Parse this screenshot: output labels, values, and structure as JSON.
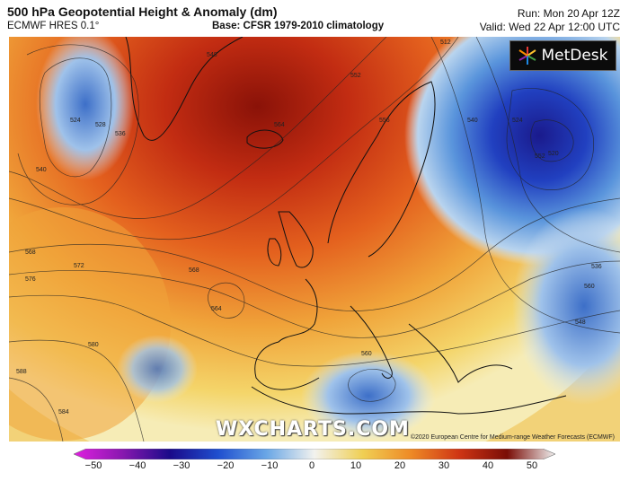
{
  "header": {
    "title": "500 hPa Geopotential Height & Anomaly (dm)",
    "model": "ECMWF HRES 0.1°",
    "base": "Base: CFSR 1979-2010 climatology",
    "run": "Run: Mon 20 Apr 12Z",
    "valid": "Valid: Wed 22 Apr 12:00 UTC"
  },
  "logo": {
    "text": "MetDesk",
    "icon": "metdesk-star-icon"
  },
  "watermark": "WXCHARTS.COM",
  "copyright": "©2020 European Centre for Medium-range Weather Forecasts (ECMWF)",
  "colorbar": {
    "ticks": [
      "−50",
      "−40",
      "−30",
      "−20",
      "−10",
      "0",
      "10",
      "20",
      "30",
      "40",
      "50"
    ],
    "colors": [
      "#e020e0",
      "#7a12a0",
      "#1a0a8a",
      "#1f4fcf",
      "#69a6e6",
      "#f2f2ee",
      "#f0cf54",
      "#ee8a26",
      "#cf3514",
      "#7a0d06",
      "#f0f0f0"
    ]
  },
  "contour_labels": [
    "524",
    "528",
    "536",
    "540",
    "548",
    "552",
    "556",
    "564",
    "568",
    "572",
    "576",
    "580",
    "584",
    "588",
    "568",
    "564",
    "560",
    "552",
    "540",
    "524",
    "512",
    "520",
    "548",
    "536",
    "560"
  ],
  "map_colors": {
    "ocean_neutral": "#f4e9b0",
    "warm_yellow": "#f2c24a",
    "warm_orange": "#ec8a2a",
    "warm_red": "#d43a18",
    "warm_dark": "#8a1208",
    "cold_light": "#bcd6ee",
    "cold_mid": "#5d97dc",
    "cold_deep": "#1e3fb0",
    "cold_core": "#1a1a8c"
  }
}
